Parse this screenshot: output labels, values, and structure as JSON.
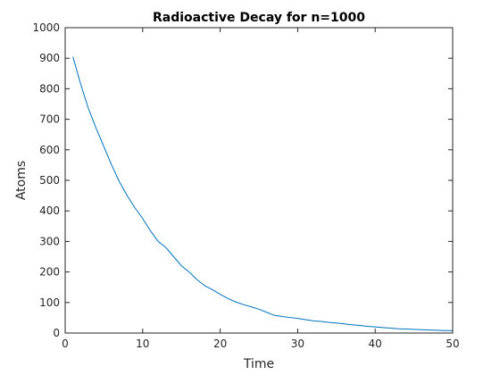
{
  "chart_data": {
    "type": "line",
    "title": "Radioactive Decay for n=1000",
    "xlabel": "Time",
    "ylabel": "Atoms",
    "xlim": [
      0,
      50
    ],
    "ylim": [
      0,
      1000
    ],
    "xticks": [
      0,
      10,
      20,
      30,
      40,
      50
    ],
    "yticks": [
      0,
      100,
      200,
      300,
      400,
      500,
      600,
      700,
      800,
      900,
      1000
    ],
    "grid": false,
    "legend": "none",
    "box": true,
    "series": [
      {
        "color": "#0072BD",
        "x": [
          1,
          2,
          3,
          4,
          5,
          6,
          7,
          8,
          9,
          10,
          11,
          12,
          13,
          14,
          15,
          16,
          17,
          18,
          19,
          20,
          21,
          22,
          23,
          24,
          25,
          26,
          27,
          28,
          29,
          30,
          31,
          32,
          33,
          34,
          35,
          36,
          37,
          38,
          39,
          40,
          41,
          42,
          43,
          44,
          45,
          46,
          47,
          48,
          49,
          50
        ],
        "values": [
          905,
          815,
          735,
          670,
          610,
          550,
          495,
          450,
          410,
          375,
          335,
          300,
          280,
          250,
          220,
          200,
          175,
          155,
          142,
          127,
          113,
          102,
          93,
          86,
          78,
          68,
          58,
          54,
          51,
          48,
          44,
          40,
          38,
          35,
          33,
          30,
          27,
          25,
          22,
          20,
          18,
          16,
          14,
          13,
          12,
          11,
          10,
          9,
          8,
          8
        ]
      }
    ]
  }
}
